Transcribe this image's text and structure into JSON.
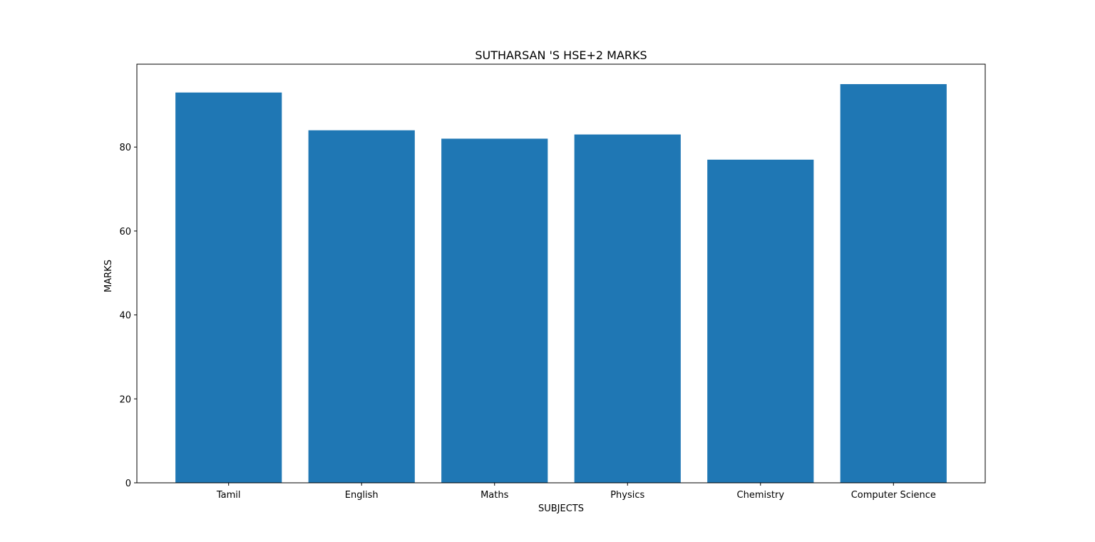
{
  "chart_data": {
    "type": "bar",
    "title": "SUTHARSAN 'S  HSE+2 MARKS",
    "xlabel": "SUBJECTS",
    "ylabel": "MARKS",
    "categories": [
      "Tamil",
      "English",
      "Maths",
      "Physics",
      "Chemistry",
      "Computer Science"
    ],
    "values": [
      93,
      84,
      82,
      83,
      77,
      95
    ],
    "ylim": [
      0,
      99.75
    ],
    "yticks": [
      0,
      20,
      40,
      60,
      80
    ],
    "grid": false,
    "legend": "none",
    "bar_color": "#1f77b4"
  }
}
